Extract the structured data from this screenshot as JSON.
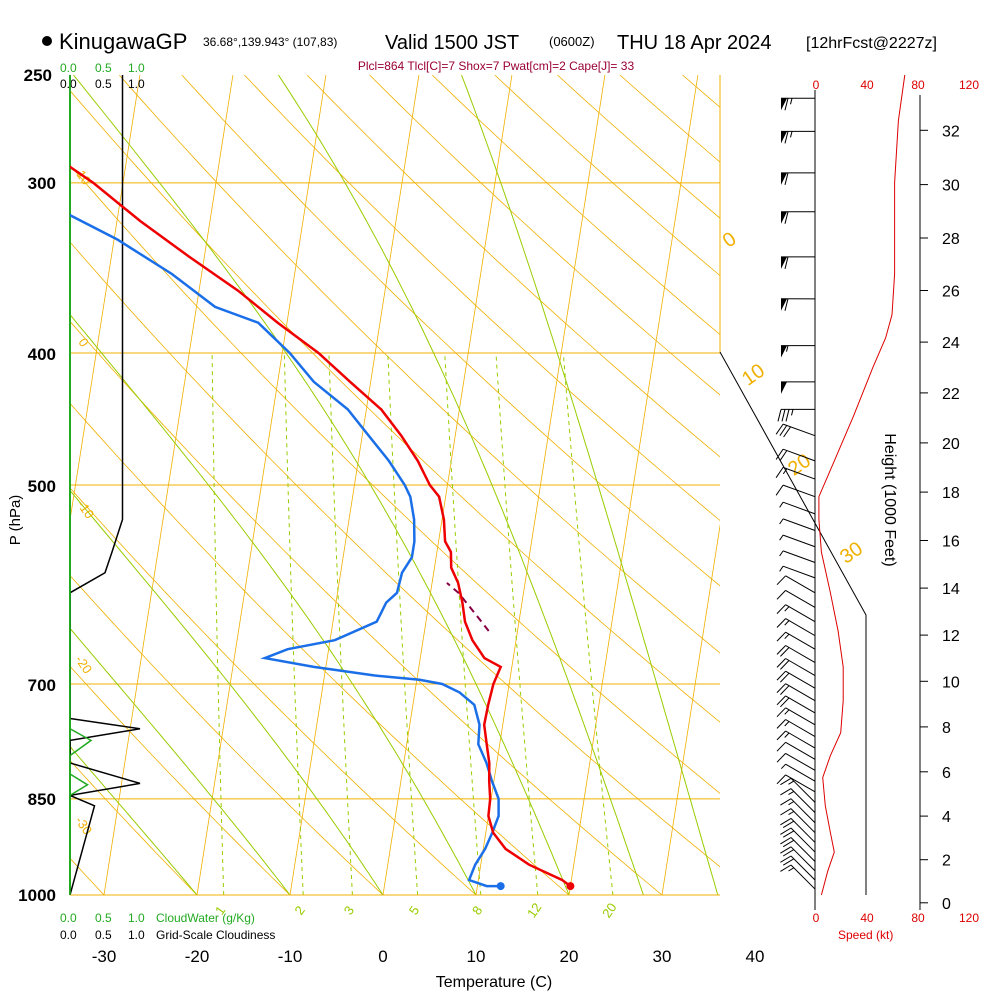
{
  "header": {
    "station": "KinugawaGP",
    "coords": "36.68°,139.943° (107,83)",
    "valid": "Valid 1500 JST",
    "zulu": "(0600Z)",
    "date": "THU 18 Apr 2024",
    "fcst": "[12hrFcst@2227z]",
    "indices": "Plcl=864 Tlcl[C]=7 Shox=7 Pwat[cm]=2 Cape[J]= 33"
  },
  "colors": {
    "temperature": "#ee0000",
    "dewpoint": "#1a6fe8",
    "parcel": "#880044",
    "isotherm_isobar": "#f0b000",
    "dry_adiabat": "#f0b000",
    "moist_adiabat": "#99cc00",
    "mixing_ratio": "#99cc00",
    "cloud_water": "#22aa22",
    "cloudiness": "#000000",
    "speed": "#dd0000",
    "header_indices": "#990033"
  },
  "cloud_panel": {
    "top_green_ticks": [
      "0.0",
      "0.5",
      "1.0"
    ],
    "top_black_ticks": [
      "0.0",
      "0.5",
      "1.0"
    ],
    "bottom_green_ticks": [
      "0.0",
      "0.5",
      "1.0"
    ],
    "bottom_black_ticks": [
      "0.0",
      "0.5",
      "1.0"
    ],
    "cloud_water_label": "CloudWater (g/Kg)",
    "cloudiness_label": "Grid-Scale Cloudiness",
    "cloudiness_profile": [
      [
        0.0,
        1000
      ],
      [
        0.35,
        860
      ],
      [
        0.0,
        845
      ],
      [
        1.0,
        828
      ],
      [
        0.0,
        800
      ],
      [
        0.0,
        770
      ],
      [
        1.0,
        755
      ],
      [
        0.0,
        742
      ],
      [
        0.0,
        600
      ],
      [
        0.5,
        580
      ],
      [
        0.6,
        560
      ],
      [
        0.75,
        530
      ],
      [
        0.75,
        250
      ]
    ],
    "cloudwater_profile": [
      [
        0.0,
        1000
      ],
      [
        0.0,
        845
      ],
      [
        0.25,
        830
      ],
      [
        0.0,
        815
      ],
      [
        0.0,
        790
      ],
      [
        0.3,
        770
      ],
      [
        0.0,
        755
      ],
      [
        0.0,
        250
      ]
    ]
  },
  "speed_panel": {
    "top_ticks": [
      "0",
      "40",
      "80",
      "120"
    ],
    "bottom_ticks": [
      "0",
      "40",
      "80",
      "120"
    ],
    "label": "Speed (kt)"
  },
  "height_axis": {
    "label": "Height (1000 Feet)",
    "ticks": [
      "0",
      "2",
      "4",
      "6",
      "8",
      "10",
      "12",
      "14",
      "16",
      "18",
      "20",
      "22",
      "24",
      "26",
      "28",
      "30",
      "32"
    ]
  },
  "chart_data": {
    "type": "line",
    "title": "KinugawaGP Valid 1500 JST (0600Z) THU 18 Apr 2024",
    "xlabel": "Temperature (C)",
    "ylabel": "P (hPa)",
    "xlim": [
      -34,
      46
    ],
    "ylim": [
      1000,
      250
    ],
    "y_log": true,
    "x_ticks": [
      "-30",
      "-20",
      "-10",
      "0",
      "10",
      "20",
      "30",
      "40"
    ],
    "y_ticks": [
      "250",
      "300",
      "400",
      "500",
      "700",
      "850",
      "1000"
    ],
    "dry_adiabat_labels": [
      "10",
      "0",
      "-10",
      "-20",
      "-30"
    ],
    "moist_adiabat_labels": [
      "0",
      "10",
      "20",
      "30"
    ],
    "mixing_ratio_labels": [
      "1",
      "2",
      "3",
      "5",
      "8",
      "12",
      "20"
    ],
    "series": [
      {
        "name": "",
        "key": "temperature",
        "points": [
          [
            20,
            985
          ],
          [
            19,
            975
          ],
          [
            15.2,
            950
          ],
          [
            12.4,
            925
          ],
          [
            10.8,
            900
          ],
          [
            10.0,
            875
          ],
          [
            9.9,
            850
          ],
          [
            9.5,
            825
          ],
          [
            9.2,
            800
          ],
          [
            8.6,
            775
          ],
          [
            8.0,
            750
          ],
          [
            8.1,
            725
          ],
          [
            8.3,
            700
          ],
          [
            8.8,
            680
          ],
          [
            6.9,
            670
          ],
          [
            5.3,
            650
          ],
          [
            4.2,
            630
          ],
          [
            3.6,
            610
          ],
          [
            2.8,
            590
          ],
          [
            1.8,
            575
          ],
          [
            1.5,
            560
          ],
          [
            0.7,
            550
          ],
          [
            0.2,
            530
          ],
          [
            -0.7,
            510
          ],
          [
            -1.9,
            500
          ],
          [
            -3.6,
            480
          ],
          [
            -5.8,
            460
          ],
          [
            -8.4,
            440
          ],
          [
            -12.2,
            420
          ],
          [
            -16.1,
            400
          ],
          [
            -21.0,
            380
          ],
          [
            -25.8,
            360
          ],
          [
            -31.6,
            340
          ],
          [
            -37.5,
            320
          ],
          [
            -43.2,
            300
          ],
          [
            -50.3,
            280
          ],
          [
            -55.2,
            265
          ]
        ]
      },
      {
        "name": "",
        "key": "dewpoint",
        "points": [
          [
            12.5,
            985
          ],
          [
            11.0,
            985
          ],
          [
            9.0,
            975
          ],
          [
            9.4,
            950
          ],
          [
            10.2,
            925
          ],
          [
            10.7,
            900
          ],
          [
            11.1,
            875
          ],
          [
            10.8,
            850
          ],
          [
            9.8,
            825
          ],
          [
            8.9,
            800
          ],
          [
            7.7,
            775
          ],
          [
            7.5,
            750
          ],
          [
            6.6,
            725
          ],
          [
            4.8,
            710
          ],
          [
            2.8,
            700
          ],
          [
            0.3,
            695
          ],
          [
            -4.6,
            690
          ],
          [
            -11.3,
            680
          ],
          [
            -16.7,
            670
          ],
          [
            -14.4,
            660
          ],
          [
            -9.5,
            650
          ],
          [
            -5.3,
            630
          ],
          [
            -4.6,
            610
          ],
          [
            -3.6,
            600
          ],
          [
            -3.4,
            580
          ],
          [
            -2.6,
            565
          ],
          [
            -2.6,
            550
          ],
          [
            -3.0,
            530
          ],
          [
            -3.8,
            510
          ],
          [
            -4.6,
            500
          ],
          [
            -6.7,
            480
          ],
          [
            -9.3,
            460
          ],
          [
            -12.0,
            440
          ],
          [
            -16.1,
            420
          ],
          [
            -19.2,
            400
          ],
          [
            -23.1,
            380
          ],
          [
            -28.0,
            370
          ],
          [
            -33.2,
            350
          ],
          [
            -39.7,
            330
          ],
          [
            -48.1,
            310
          ],
          [
            -53.4,
            300
          ],
          [
            -60.0,
            280
          ],
          [
            -65.4,
            265
          ]
        ]
      },
      {
        "name": "",
        "key": "parcel",
        "points": [
          [
            6.9,
            640
          ],
          [
            5.0,
            620
          ],
          [
            3.0,
            600
          ],
          [
            1.6,
            590
          ]
        ]
      }
    ],
    "surface_points": [
      {
        "key": "temperature",
        "x": 20,
        "p": 985
      },
      {
        "key": "dewpoint",
        "x": 12.5,
        "p": 985
      }
    ],
    "speed_profile": [
      [
        5,
        1000
      ],
      [
        10,
        960
      ],
      [
        15,
        930
      ],
      [
        12,
        900
      ],
      [
        8,
        860
      ],
      [
        6,
        820
      ],
      [
        12,
        790
      ],
      [
        20,
        760
      ],
      [
        22,
        720
      ],
      [
        22,
        680
      ],
      [
        18,
        640
      ],
      [
        12,
        600
      ],
      [
        5,
        560
      ],
      [
        3,
        530
      ],
      [
        3,
        510
      ],
      [
        15,
        480
      ],
      [
        30,
        445
      ],
      [
        45,
        410
      ],
      [
        55,
        390
      ],
      [
        60,
        375
      ],
      [
        62,
        350
      ],
      [
        62,
        300
      ],
      [
        65,
        270
      ],
      [
        70,
        250
      ]
    ],
    "wind_barbs": [
      {
        "p": 990,
        "dir": 315,
        "spd": 15
      },
      {
        "p": 975,
        "dir": 315,
        "spd": 20
      },
      {
        "p": 960,
        "dir": 315,
        "spd": 20
      },
      {
        "p": 945,
        "dir": 315,
        "spd": 20
      },
      {
        "p": 930,
        "dir": 315,
        "spd": 20
      },
      {
        "p": 915,
        "dir": 315,
        "spd": 20
      },
      {
        "p": 900,
        "dir": 315,
        "spd": 15
      },
      {
        "p": 885,
        "dir": 315,
        "spd": 15
      },
      {
        "p": 870,
        "dir": 315,
        "spd": 15
      },
      {
        "p": 855,
        "dir": 315,
        "spd": 15
      },
      {
        "p": 840,
        "dir": 300,
        "spd": 10
      },
      {
        "p": 825,
        "dir": 300,
        "spd": 5
      },
      {
        "p": 810,
        "dir": 300,
        "spd": 10
      },
      {
        "p": 795,
        "dir": 300,
        "spd": 10
      },
      {
        "p": 780,
        "dir": 300,
        "spd": 15
      },
      {
        "p": 765,
        "dir": 300,
        "spd": 15
      },
      {
        "p": 750,
        "dir": 300,
        "spd": 15
      },
      {
        "p": 735,
        "dir": 300,
        "spd": 20
      },
      {
        "p": 720,
        "dir": 300,
        "spd": 20
      },
      {
        "p": 705,
        "dir": 300,
        "spd": 20
      },
      {
        "p": 690,
        "dir": 300,
        "spd": 20
      },
      {
        "p": 675,
        "dir": 300,
        "spd": 20
      },
      {
        "p": 660,
        "dir": 300,
        "spd": 15
      },
      {
        "p": 645,
        "dir": 300,
        "spd": 15
      },
      {
        "p": 630,
        "dir": 300,
        "spd": 15
      },
      {
        "p": 615,
        "dir": 300,
        "spd": 10
      },
      {
        "p": 600,
        "dir": 300,
        "spd": 10
      },
      {
        "p": 585,
        "dir": 290,
        "spd": 5
      },
      {
        "p": 570,
        "dir": 290,
        "spd": 5
      },
      {
        "p": 555,
        "dir": 290,
        "spd": 5
      },
      {
        "p": 540,
        "dir": 290,
        "spd": 5
      },
      {
        "p": 525,
        "dir": 290,
        "spd": 5
      },
      {
        "p": 510,
        "dir": 290,
        "spd": 10
      },
      {
        "p": 495,
        "dir": 290,
        "spd": 15
      },
      {
        "p": 480,
        "dir": 290,
        "spd": 20
      },
      {
        "p": 460,
        "dir": 290,
        "spd": 30
      },
      {
        "p": 440,
        "dir": 270,
        "spd": 35
      },
      {
        "p": 420,
        "dir": 270,
        "spd": 50
      },
      {
        "p": 395,
        "dir": 270,
        "spd": 55
      },
      {
        "p": 365,
        "dir": 270,
        "spd": 60
      },
      {
        "p": 340,
        "dir": 270,
        "spd": 60
      },
      {
        "p": 315,
        "dir": 270,
        "spd": 60
      },
      {
        "p": 295,
        "dir": 270,
        "spd": 60
      },
      {
        "p": 275,
        "dir": 270,
        "spd": 65
      },
      {
        "p": 260,
        "dir": 270,
        "spd": 65
      }
    ]
  }
}
